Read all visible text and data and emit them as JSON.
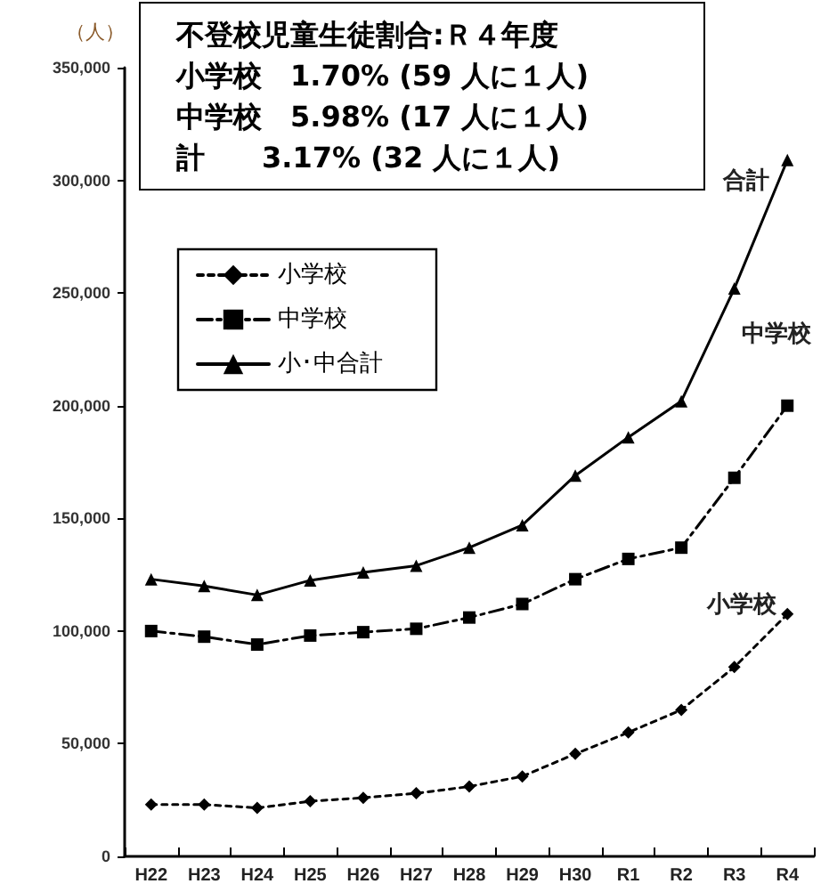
{
  "chart_data": {
    "type": "line",
    "ylabel": "（人）",
    "categories": [
      "H22",
      "H23",
      "H24",
      "H25",
      "H26",
      "H27",
      "H28",
      "H29",
      "H30",
      "R1",
      "R2",
      "R3",
      "R4"
    ],
    "series": [
      {
        "name": "小学校",
        "color": "#000000",
        "marker": "diamond",
        "line_style": "dotted",
        "values": [
          23000,
          23000,
          21500,
          24500,
          26000,
          28000,
          31000,
          35500,
          45500,
          55000,
          65000,
          84000,
          107500
        ]
      },
      {
        "name": "中学校",
        "color": "#000000",
        "marker": "square",
        "line_style": "dashed",
        "values": [
          100000,
          97500,
          94000,
          98000,
          99500,
          101000,
          106000,
          112000,
          123000,
          132000,
          137000,
          168000,
          200000
        ]
      },
      {
        "name": "小･中合計",
        "color": "#000000",
        "marker": "triangle",
        "line_style": "solid",
        "values": [
          123000,
          120000,
          116000,
          122500,
          126000,
          129000,
          137000,
          147000,
          169000,
          186000,
          202000,
          252000,
          309000
        ]
      }
    ],
    "ylim": [
      0,
      350000
    ],
    "yticks": [
      0,
      {
        "value": 50000,
        "label": "50,000"
      },
      {
        "value": 100000,
        "label": "100,000"
      },
      {
        "value": 150000,
        "label": "150,000"
      },
      {
        "value": 200000,
        "label": "200,000"
      },
      {
        "value": 250000,
        "label": "250,000"
      },
      {
        "value": 300000,
        "label": "300,000"
      },
      {
        "value": 350000,
        "label": "350,000"
      }
    ],
    "grid": false,
    "legend": "top left",
    "annotations": [
      "不登校児童生徒割合:Ｒ４年度",
      "小学校　1.70% (59 人に１人)",
      "中学校　5.98% (17 人に１人)",
      "計　　3.17% (32 人に１人)",
      {
        "text": "合計",
        "x": "R4",
        "y": 309000
      },
      {
        "text": "中学校",
        "x": "R4",
        "y": 200000
      },
      {
        "text": "小学校",
        "x": "R4",
        "y": 107500
      }
    ]
  }
}
